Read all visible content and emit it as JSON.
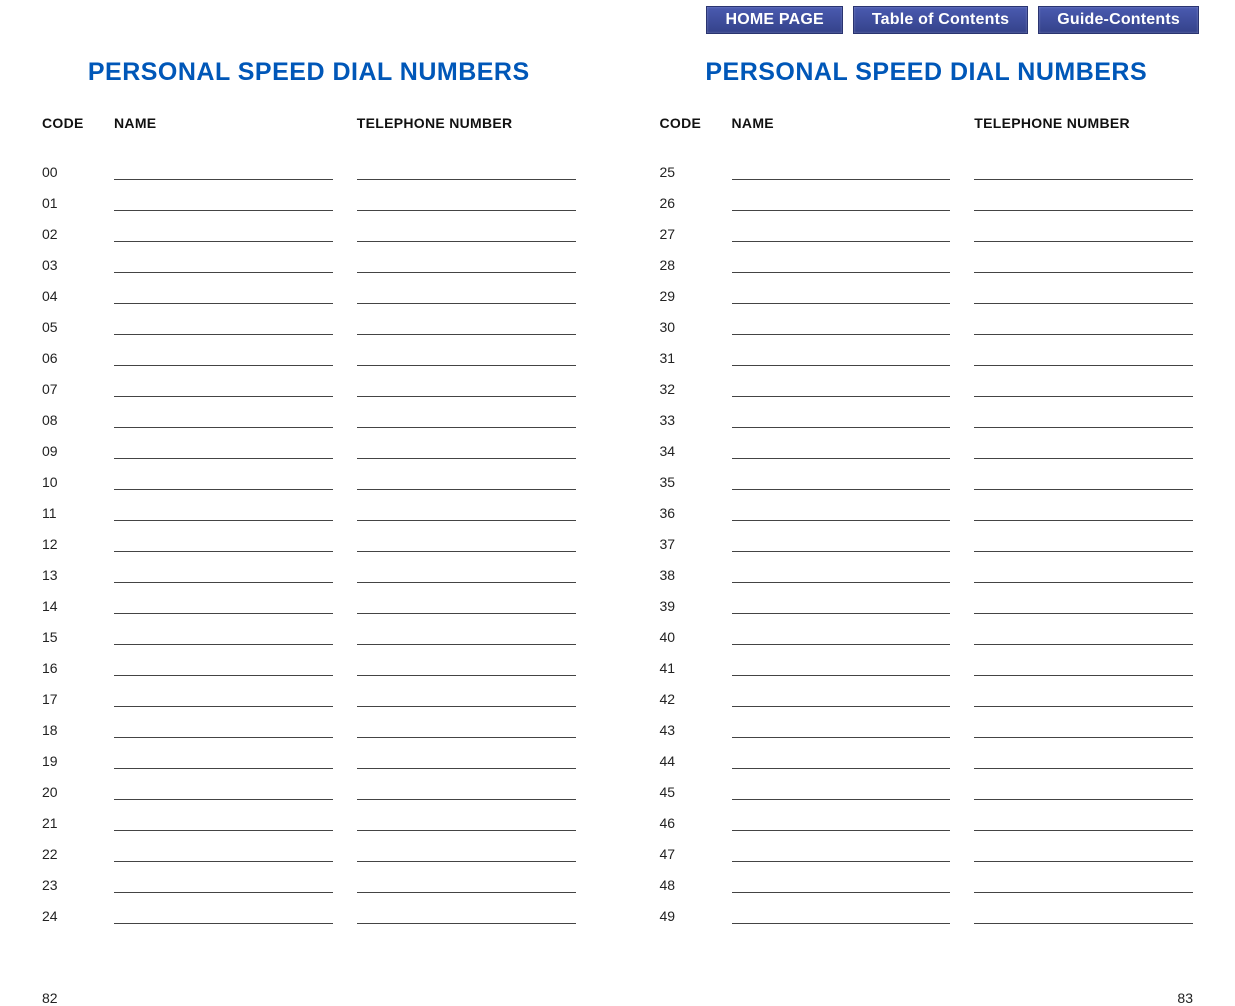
{
  "nav": {
    "home": "HOME PAGE",
    "toc": "Table of Contents",
    "guide": "Guide-Contents"
  },
  "title": "PERSONAL SPEED DIAL NUMBERS",
  "headers": {
    "code": "CODE",
    "name": "NAME",
    "tel": "TELEPHONE NUMBER"
  },
  "left_page_number": "82",
  "right_page_number": "83",
  "left_codes": [
    "00",
    "01",
    "02",
    "03",
    "04",
    "05",
    "06",
    "07",
    "08",
    "09",
    "10",
    "11",
    "12",
    "13",
    "14",
    "15",
    "16",
    "17",
    "18",
    "19",
    "20",
    "21",
    "22",
    "23",
    "24"
  ],
  "right_codes": [
    "25",
    "26",
    "27",
    "28",
    "29",
    "30",
    "31",
    "32",
    "33",
    "34",
    "35",
    "36",
    "37",
    "38",
    "39",
    "40",
    "41",
    "42",
    "43",
    "44",
    "45",
    "46",
    "47",
    "48",
    "49"
  ],
  "colors": {
    "title_color": "#0057b8",
    "nav_bg": "#3a4a9a",
    "nav_text": "#ffffff",
    "line_color": "#444444",
    "text_color": "#111111",
    "background": "#ffffff"
  }
}
